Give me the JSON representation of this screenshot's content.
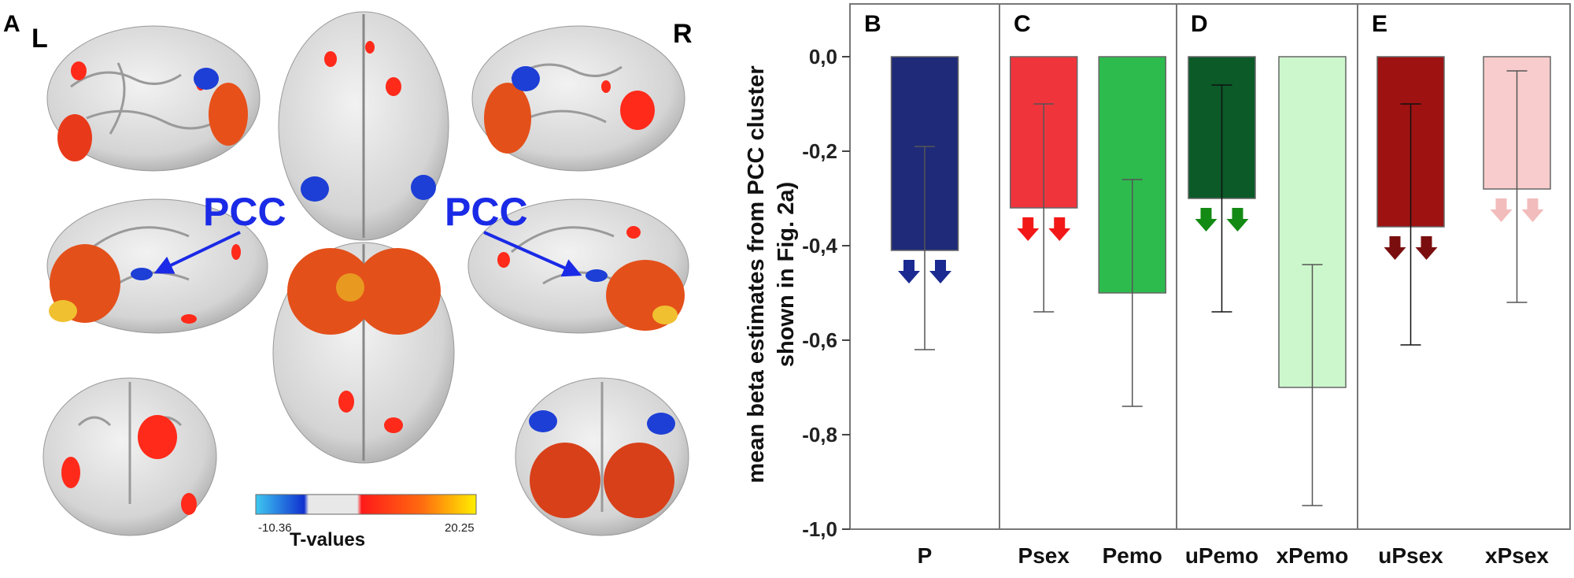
{
  "panel_a": {
    "letter": "A",
    "left_hemisphere": "L",
    "right_hemisphere": "R",
    "roi_label": "PCC",
    "colorbar": {
      "min": "-10.36",
      "max": "20.25",
      "title": "T-values",
      "colors": [
        "#3ec8f0",
        "#1030d0",
        "#e8e8e8",
        "#e8e8e8",
        "#ff1a1a",
        "#ff6a10",
        "#ffee00"
      ]
    }
  },
  "chart_data": {
    "type": "bar",
    "ylabel": "mean beta estimates from PCC cluster shown in Fig. 2a)",
    "ylim": [
      -1.0,
      0.0
    ],
    "yticks": [
      "0,0",
      "-0,2",
      "-0,4",
      "-0,6",
      "-0,8",
      "-1,0"
    ],
    "ytick_values": [
      0,
      -0.2,
      -0.4,
      -0.6,
      -0.8,
      -1.0
    ],
    "groups": [
      {
        "letter": "B",
        "categories": [
          "P"
        ]
      },
      {
        "letter": "C",
        "categories": [
          "Psex",
          "Pemo"
        ]
      },
      {
        "letter": "D",
        "categories": [
          "uPemo",
          "xPemo"
        ]
      },
      {
        "letter": "E",
        "categories": [
          "uPsex",
          "xPsex"
        ]
      }
    ],
    "categories": [
      "P",
      "Psex",
      "Pemo",
      "uPemo",
      "xPemo",
      "uPsex",
      "xPsex"
    ],
    "values": [
      -0.41,
      -0.32,
      -0.5,
      -0.3,
      -0.7,
      -0.36,
      -0.28
    ],
    "error_low": [
      -0.62,
      -0.54,
      -0.74,
      -0.54,
      -0.95,
      -0.61,
      -0.52
    ],
    "error_high": [
      -0.19,
      -0.1,
      -0.26,
      -0.06,
      -0.44,
      -0.1,
      -0.03
    ],
    "colors": [
      "#1f2a78",
      "#f0343c",
      "#2dbb4e",
      "#0b5a28",
      "#ccf7cc",
      "#9e1212",
      "#f8cccc"
    ],
    "down_arrows": [
      true,
      true,
      false,
      true,
      false,
      true,
      true
    ],
    "arrow_colors": [
      "#1a2a90",
      "#f21818",
      "",
      "#138a13",
      "",
      "#7a0e0e",
      "#f2bcbc"
    ],
    "grid": false,
    "legend": "none"
  }
}
